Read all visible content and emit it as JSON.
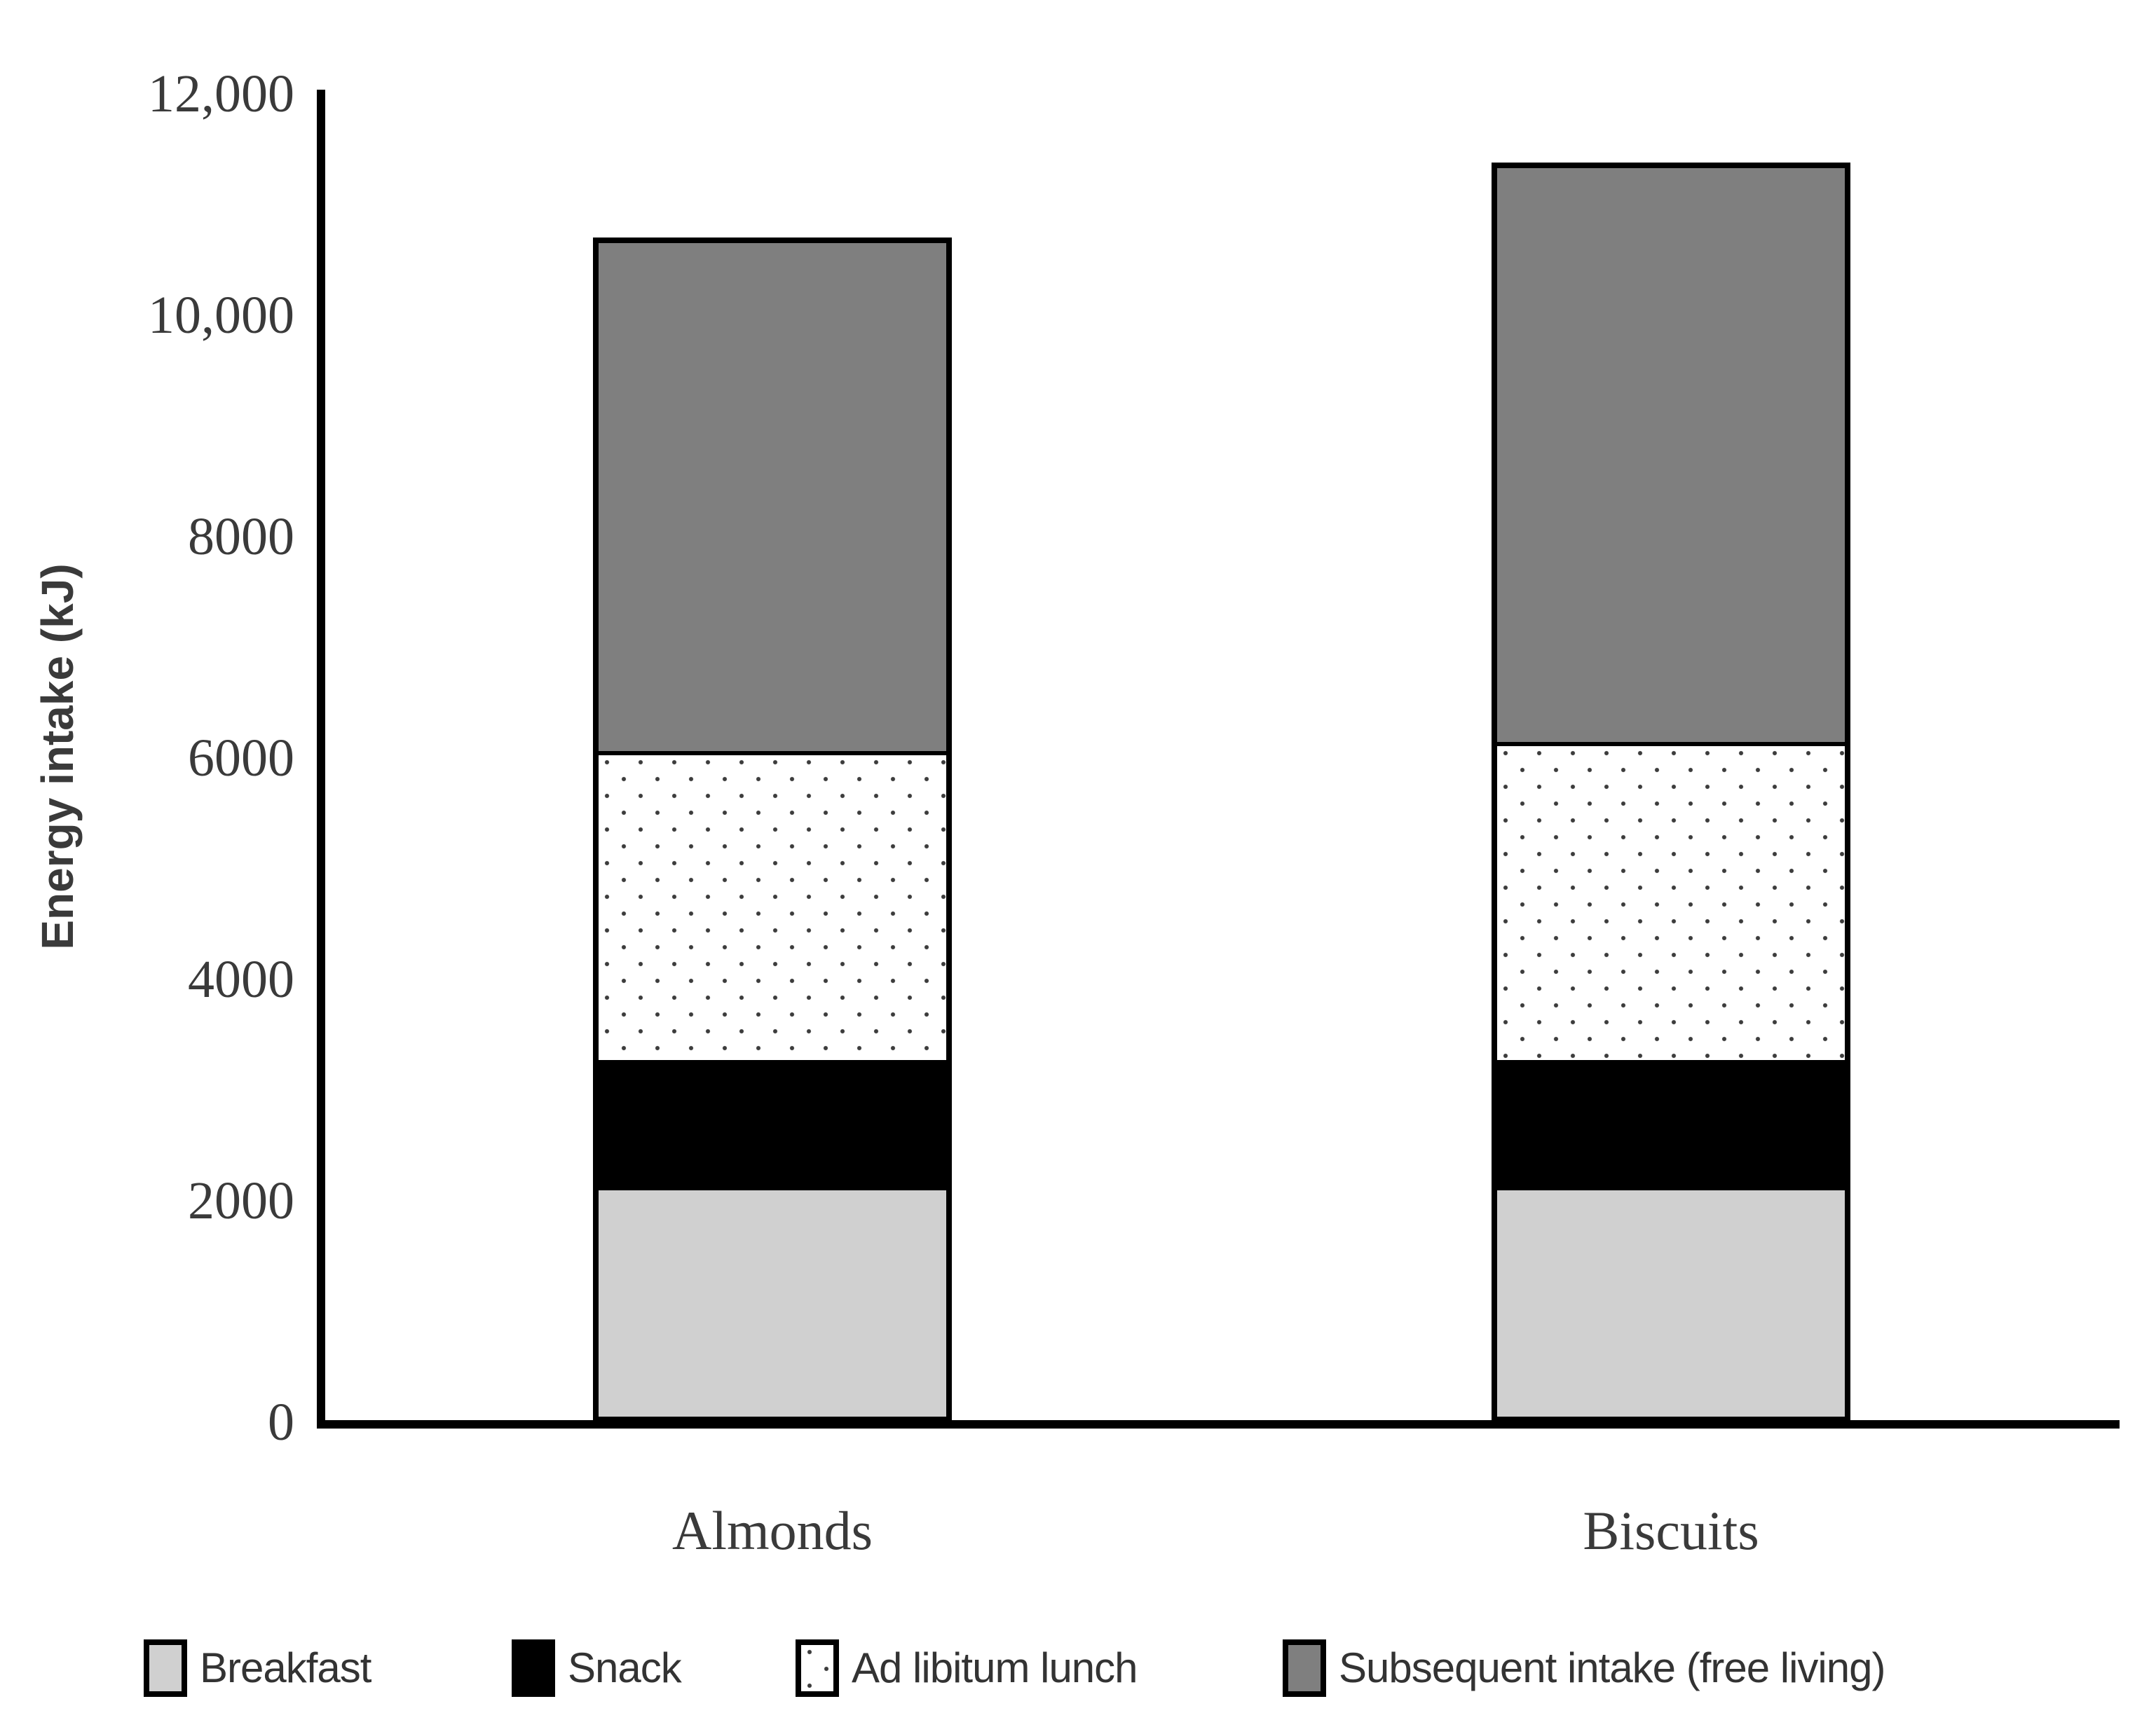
{
  "figure": {
    "y_axis_title": "Energy intake (kJ)"
  },
  "legend": {
    "items": [
      {
        "label": "Breakfast",
        "fill": "#d0d0d0"
      },
      {
        "label": "Snack",
        "fill": "#000000"
      },
      {
        "label": "Ad libitum lunch",
        "fill": "pattern-dots"
      },
      {
        "label": "Subsequent intake (free living)",
        "fill": "#7f7f7f"
      }
    ]
  },
  "chart_data": {
    "type": "bar",
    "stacked": true,
    "title": "",
    "xlabel": "",
    "ylabel": "Energy intake (kJ)",
    "ylim": [
      0,
      12000
    ],
    "grid": false,
    "legend_position": "bottom",
    "categories": [
      "Almonds",
      "Biscuits"
    ],
    "series": [
      {
        "name": "Breakfast",
        "fill": "#d0d0d0",
        "values": [
          2100,
          2100
        ]
      },
      {
        "name": "Snack",
        "fill": "#000000",
        "values": [
          1150,
          1150
        ]
      },
      {
        "name": "Ad libitum lunch",
        "fill": "pattern-dots",
        "values": [
          2820,
          2900
        ]
      },
      {
        "name": "Subsequent intake (free living)",
        "fill": "#7f7f7f",
        "values": [
          4630,
          5230
        ]
      }
    ],
    "totals": [
      10700,
      11380
    ],
    "yticks": [
      {
        "value": 12000,
        "label": "12,000"
      },
      {
        "value": 10000,
        "label": "10,000"
      },
      {
        "value": 8000,
        "label": "8000"
      },
      {
        "value": 6000,
        "label": "6000"
      },
      {
        "value": 4000,
        "label": "4000"
      },
      {
        "value": 2000,
        "label": "2000"
      },
      {
        "value": 0,
        "label": "0"
      }
    ]
  }
}
